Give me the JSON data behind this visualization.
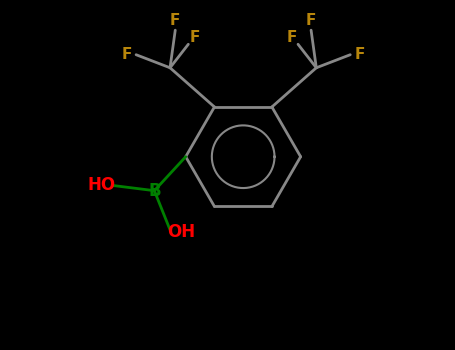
{
  "background_color": "#000000",
  "bond_color": "#888888",
  "F_color": "#B8860B",
  "B_color": "#008000",
  "HO_color": "#FF0000",
  "bond_width": 2.0,
  "font_size_F": 11,
  "font_size_B": 11,
  "font_size_HO": 11,
  "figsize": [
    4.55,
    3.5
  ],
  "dpi": 100,
  "xlim": [
    -4.0,
    4.0
  ],
  "ylim": [
    -3.5,
    3.2
  ]
}
